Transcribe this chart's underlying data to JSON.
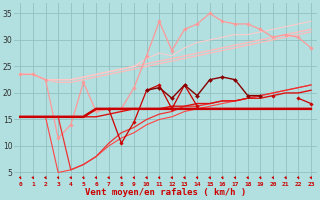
{
  "background_color": "#b2dfdf",
  "grid_color": "#90c0c0",
  "x_values": [
    0,
    1,
    2,
    3,
    4,
    5,
    6,
    7,
    8,
    9,
    10,
    11,
    12,
    13,
    14,
    15,
    16,
    17,
    18,
    19,
    20,
    21,
    22,
    23
  ],
  "xlabel": "Vent moyen/en rafales ( km/h )",
  "xlabel_color": "#cc0000",
  "yticks": [
    5,
    10,
    15,
    20,
    25,
    30,
    35
  ],
  "ylim": [
    3.5,
    37
  ],
  "xlim": [
    -0.5,
    23.5
  ],
  "series": [
    {
      "y": [
        23.5,
        23.5,
        22.5,
        22.5,
        22.5,
        23.0,
        23.5,
        24.0,
        24.5,
        25.0,
        25.5,
        26.0,
        26.5,
        27.0,
        27.5,
        28.0,
        28.5,
        29.0,
        29.5,
        30.0,
        30.5,
        31.0,
        31.5,
        32.0
      ],
      "color": "#ffbbbb",
      "lw": 1.0,
      "marker": null,
      "ms": 0,
      "zorder": 2
    },
    {
      "y": [
        23.5,
        23.5,
        22.5,
        22.0,
        22.0,
        22.5,
        23.0,
        23.5,
        24.0,
        24.5,
        25.0,
        25.5,
        26.0,
        26.5,
        27.0,
        27.5,
        28.0,
        28.5,
        29.0,
        29.5,
        30.0,
        30.5,
        31.0,
        31.5
      ],
      "color": "#ffbbbb",
      "lw": 0.9,
      "marker": null,
      "ms": 0,
      "zorder": 2
    },
    {
      "y": [
        23.5,
        23.5,
        22.5,
        22.5,
        22.5,
        23.0,
        23.5,
        24.0,
        24.5,
        25.0,
        26.5,
        27.5,
        27.0,
        28.5,
        29.5,
        30.0,
        30.5,
        31.0,
        31.0,
        31.5,
        32.0,
        32.5,
        33.0,
        33.5
      ],
      "color": "#ffcccc",
      "lw": 0.8,
      "marker": null,
      "ms": 0,
      "zorder": 2
    },
    {
      "y": [
        23.5,
        23.5,
        22.5,
        11.5,
        14.0,
        22.0,
        16.5,
        17.0,
        17.0,
        21.0,
        27.0,
        33.5,
        28.0,
        32.0,
        33.0,
        35.0,
        33.5,
        33.0,
        33.0,
        32.0,
        30.5,
        31.0,
        30.5,
        28.5
      ],
      "color": "#ff9999",
      "lw": 0.9,
      "marker": "D",
      "ms": 1.8,
      "zorder": 3
    },
    {
      "y": [
        15.5,
        15.5,
        15.5,
        15.5,
        15.5,
        15.5,
        17.0,
        17.0,
        17.0,
        17.0,
        17.0,
        17.0,
        17.0,
        17.0,
        17.0,
        17.0,
        17.0,
        17.0,
        17.0,
        17.0,
        17.0,
        17.0,
        17.0,
        17.0
      ],
      "color": "#cc0000",
      "lw": 1.8,
      "marker": null,
      "ms": 0,
      "zorder": 5
    },
    {
      "y": [
        15.5,
        15.5,
        15.5,
        15.5,
        15.5,
        15.5,
        15.5,
        16.0,
        16.5,
        17.0,
        17.0,
        17.0,
        17.5,
        17.5,
        18.0,
        18.0,
        18.5,
        18.5,
        19.0,
        19.0,
        19.5,
        20.0,
        20.0,
        20.5
      ],
      "color": "#dd1111",
      "lw": 1.0,
      "marker": null,
      "ms": 0,
      "zorder": 4
    },
    {
      "y": [
        15.5,
        15.5,
        15.5,
        15.5,
        5.5,
        6.5,
        8.0,
        10.5,
        12.5,
        13.5,
        15.0,
        16.0,
        16.5,
        17.5,
        17.5,
        18.0,
        18.5,
        18.5,
        19.0,
        19.5,
        20.0,
        20.5,
        21.0,
        21.5
      ],
      "color": "#ee3333",
      "lw": 0.9,
      "marker": null,
      "ms": 0,
      "zorder": 3
    },
    {
      "y": [
        15.5,
        15.5,
        15.5,
        5.0,
        5.5,
        6.5,
        8.0,
        10.0,
        11.5,
        12.5,
        14.0,
        15.0,
        15.5,
        16.5,
        17.0,
        17.5,
        18.0,
        18.5,
        19.0,
        19.5,
        20.0,
        20.5,
        21.0,
        21.5
      ],
      "color": "#ff4444",
      "lw": 0.8,
      "marker": null,
      "ms": 0,
      "zorder": 2
    },
    {
      "y": [
        null,
        null,
        null,
        null,
        null,
        null,
        null,
        null,
        null,
        null,
        20.5,
        21.0,
        19.0,
        21.5,
        19.5,
        22.5,
        23.0,
        22.5,
        19.5,
        19.5,
        null,
        null,
        null,
        null
      ],
      "color": "#880000",
      "lw": 1.0,
      "marker": "D",
      "ms": 2.0,
      "zorder": 6
    },
    {
      "y": [
        null,
        null,
        null,
        null,
        null,
        null,
        null,
        17.0,
        10.5,
        14.5,
        20.5,
        21.5,
        17.0,
        21.5,
        17.5,
        null,
        null,
        null,
        null,
        null,
        19.5,
        null,
        19.0,
        18.0
      ],
      "color": "#cc0000",
      "lw": 0.9,
      "marker": "D",
      "ms": 1.8,
      "zorder": 5
    }
  ]
}
